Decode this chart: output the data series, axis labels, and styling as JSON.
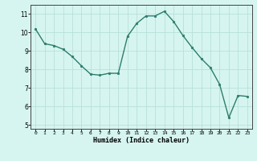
{
  "x": [
    0,
    1,
    2,
    3,
    4,
    5,
    6,
    7,
    8,
    9,
    10,
    11,
    12,
    13,
    14,
    15,
    16,
    17,
    18,
    19,
    20,
    21,
    22,
    23
  ],
  "y": [
    10.2,
    9.4,
    9.3,
    9.1,
    8.7,
    8.2,
    7.75,
    7.7,
    7.8,
    7.8,
    9.8,
    10.5,
    10.9,
    10.9,
    11.15,
    10.6,
    9.85,
    9.2,
    8.6,
    8.1,
    7.2,
    5.4,
    6.6,
    6.55
  ],
  "line_color": "#2e7d6e",
  "marker": "o",
  "marker_size": 1.8,
  "bg_color": "#d6f5f0",
  "grid_color": "#b8e0da",
  "xlabel": "Humidex (Indice chaleur)",
  "ylim": [
    4.8,
    11.5
  ],
  "xlim": [
    -0.5,
    23.5
  ],
  "yticks": [
    5,
    6,
    7,
    8,
    9,
    10,
    11
  ],
  "xticks": [
    0,
    1,
    2,
    3,
    4,
    5,
    6,
    7,
    8,
    9,
    10,
    11,
    12,
    13,
    14,
    15,
    16,
    17,
    18,
    19,
    20,
    21,
    22,
    23
  ],
  "linewidth": 1.0
}
